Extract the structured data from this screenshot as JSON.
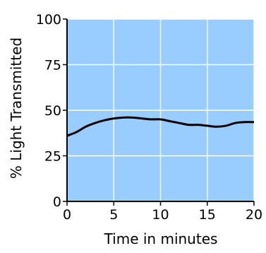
{
  "chart_data": {
    "type": "line",
    "title": "",
    "xlabel": "Time in minutes",
    "ylabel": "% Light Transmitted",
    "xlim": [
      0,
      20
    ],
    "ylim": [
      0,
      100
    ],
    "xticks": [
      0,
      5,
      10,
      15,
      20
    ],
    "yticks": [
      0,
      25,
      50,
      75,
      100
    ],
    "grid": true,
    "legend": "none",
    "colors": {
      "plot_bg": "#99ccff",
      "grid": "#ffffff",
      "line": "#000000",
      "axis": "#000000"
    },
    "series": [
      {
        "x": [
          0,
          1,
          2,
          3,
          4,
          5,
          6,
          7,
          8,
          9,
          10,
          11,
          12,
          13,
          14,
          15,
          16,
          17,
          18,
          19,
          20
        ],
        "values": [
          36,
          38,
          41,
          43,
          44.5,
          45.5,
          46,
          46,
          45.5,
          45,
          45,
          44,
          43,
          42,
          42,
          41.5,
          41,
          41.5,
          43,
          43.5,
          43.5
        ]
      }
    ]
  }
}
